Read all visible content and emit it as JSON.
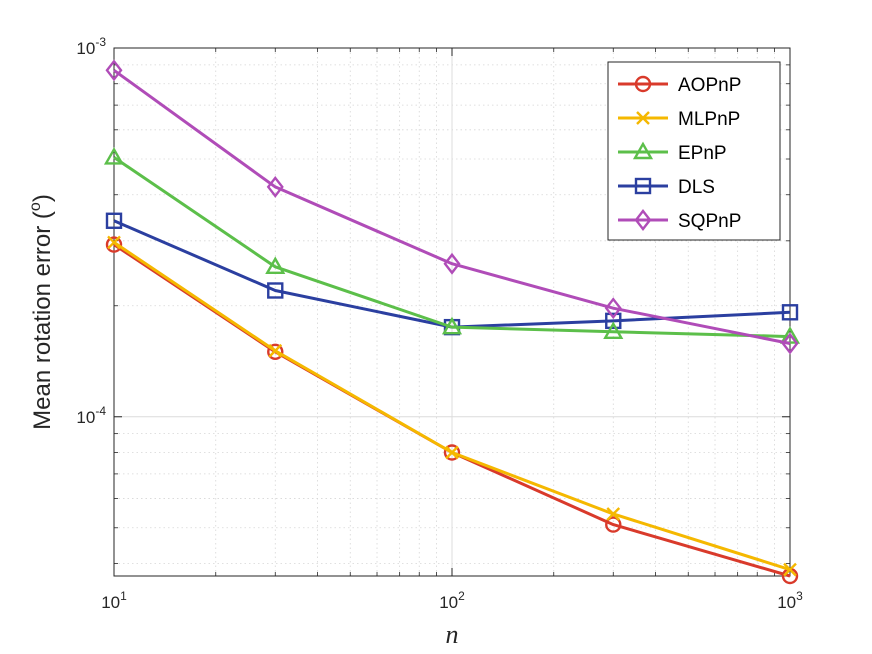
{
  "chart_data": {
    "type": "line",
    "scale": "log-log",
    "xlabel": "n",
    "ylabel": "Mean rotation error (",
    "ylabel_sup": "o",
    "ylabel_close": ")",
    "xlim": [
      10,
      1000
    ],
    "ylim": [
      3.7e-05,
      0.001
    ],
    "grid": true,
    "minor_grid": true,
    "legend_position": "top-right",
    "x_ticks": [
      {
        "value": 10,
        "base": "10",
        "exp": "1"
      },
      {
        "value": 100,
        "base": "10",
        "exp": "2"
      },
      {
        "value": 1000,
        "base": "10",
        "exp": "3"
      }
    ],
    "y_ticks": [
      {
        "value": 0.0001,
        "base": "10",
        "exp": "-4"
      },
      {
        "value": 0.001,
        "base": "10",
        "exp": "-3"
      }
    ],
    "x": [
      10,
      30,
      100,
      300,
      1000
    ],
    "series": [
      {
        "name": "AOPnP",
        "color": "#d93a2b",
        "marker": "circle",
        "values": [
          0.000293,
          0.00015,
          8e-05,
          5.1e-05,
          3.7e-05
        ]
      },
      {
        "name": "MLPnP",
        "color": "#f5b800",
        "marker": "x",
        "values": [
          0.000297,
          0.000151,
          8e-05,
          5.45e-05,
          3.85e-05
        ]
      },
      {
        "name": "EPnP",
        "color": "#5cbf4a",
        "marker": "triangle",
        "values": [
          0.000505,
          0.000255,
          0.000175,
          0.00017,
          0.000165
        ]
      },
      {
        "name": "DLS",
        "color": "#2b3fa0",
        "marker": "square",
        "values": [
          0.00034,
          0.00022,
          0.000175,
          0.000182,
          0.000192
        ]
      },
      {
        "name": "SQPnP",
        "color": "#b04cb8",
        "marker": "diamond",
        "values": [
          0.00087,
          0.00042,
          0.00026,
          0.000197,
          0.000158
        ]
      }
    ]
  }
}
